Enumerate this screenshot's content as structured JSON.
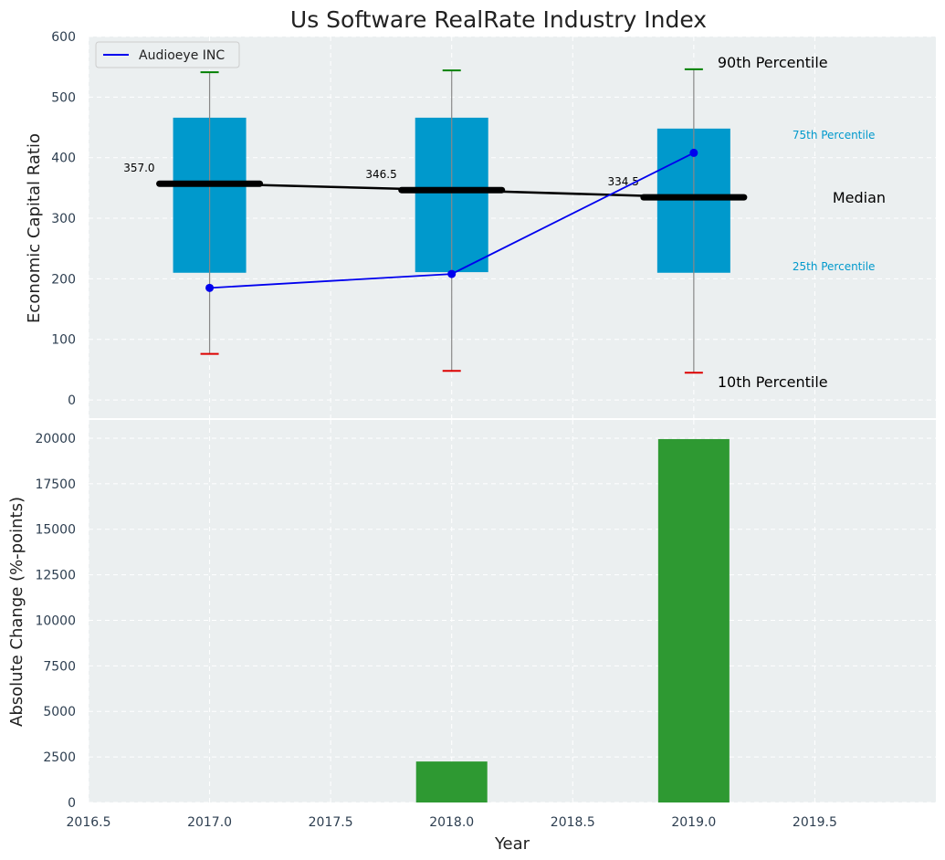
{
  "title": "Us Software RealRate Industry Index",
  "colors": {
    "panel_bg": "#ebeff0",
    "grid": "#ffffff",
    "box": "#0099cc",
    "median": "#000000",
    "company_line": "#0000ee",
    "p90": "#008000",
    "p10": "#dd0000",
    "bar": "#2e9932",
    "tick_text": "#2d3e50"
  },
  "chart_data": [
    {
      "type": "box",
      "ylabel": "Economic Capital Ratio",
      "xlim": [
        2016.5,
        2020.0
      ],
      "ylim": [
        -30,
        600
      ],
      "yticks": [
        0,
        100,
        200,
        300,
        400,
        500,
        600
      ],
      "legend": {
        "placement": "top-left",
        "entries": [
          "Audioeye INC"
        ]
      },
      "grid": true,
      "years": [
        2017,
        2018,
        2019
      ],
      "p10": [
        76,
        48,
        45
      ],
      "p25": [
        210,
        211,
        210
      ],
      "median": [
        357.0,
        346.5,
        334.5
      ],
      "median_labels": [
        "357.0",
        "346.5",
        "334.5"
      ],
      "p75": [
        466,
        466,
        448
      ],
      "p90": [
        541,
        544,
        546
      ],
      "series": [
        {
          "name": "Audioeye INC",
          "x": [
            2017,
            2018,
            2019
          ],
          "values": [
            185,
            208,
            408
          ]
        }
      ],
      "annotations": {
        "p90": "90th Percentile",
        "p75": "75th Percentile",
        "median": "Median",
        "p25": "25th Percentile",
        "p10": "10th Percentile"
      }
    },
    {
      "type": "bar",
      "xlabel": "Year",
      "ylabel": "Absolute Change (%-points)",
      "xlim": [
        2016.5,
        2020.0
      ],
      "ylim": [
        0,
        21000
      ],
      "xticks": [
        2016.5,
        2017.0,
        2017.5,
        2018.0,
        2018.5,
        2019.0,
        2019.5
      ],
      "xtick_labels": [
        "2016.5",
        "2017.0",
        "2017.5",
        "2018.0",
        "2018.5",
        "2019.0",
        "2019.5"
      ],
      "yticks": [
        0,
        2500,
        5000,
        7500,
        10000,
        12500,
        15000,
        17500,
        20000
      ],
      "grid": true,
      "x": [
        2018,
        2019
      ],
      "values": [
        2250,
        19950
      ]
    }
  ]
}
